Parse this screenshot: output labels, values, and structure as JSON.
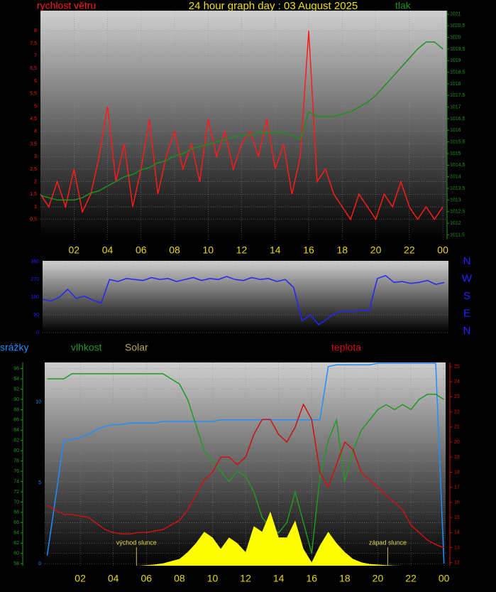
{
  "chart_data": [
    {
      "type": "line",
      "title": "24 hour graph day : 03 August 2025",
      "x": [
        0,
        0.5,
        1,
        1.5,
        2,
        2.5,
        3,
        3.5,
        4,
        4.5,
        5,
        5.5,
        6,
        6.5,
        7,
        7.5,
        8,
        8.5,
        9,
        9.5,
        10,
        10.5,
        11,
        11.5,
        12,
        12.5,
        13,
        13.5,
        14,
        14.5,
        15,
        15.5,
        16,
        16.5,
        17,
        17.5,
        18,
        18.5,
        19,
        19.5,
        20,
        20.5,
        21,
        21.5,
        22,
        22.5,
        23,
        23.5,
        24
      ],
      "xlim": [
        0,
        24.25
      ],
      "xticks": [
        {
          "value": 2,
          "label": "02"
        },
        {
          "value": 4,
          "label": "04"
        },
        {
          "value": 6,
          "label": "06"
        },
        {
          "value": 8,
          "label": "08"
        },
        10,
        12,
        14,
        16,
        18,
        20,
        22,
        {
          "value": 24,
          "label": "00"
        }
      ],
      "ylim": [
        -0.3,
        8.8
      ],
      "yticks": [
        {
          "value": 0.5,
          "label": "0,5"
        },
        1,
        {
          "value": 1.5,
          "label": "1,5"
        },
        2,
        {
          "value": 2.5,
          "label": "2,5"
        },
        3,
        {
          "value": 3.5,
          "label": "3,5"
        },
        4,
        {
          "value": 4.5,
          "label": "4,5"
        },
        5,
        {
          "value": 5.5,
          "label": "5,5"
        },
        6,
        {
          "value": 6.5,
          "label": "6,5"
        },
        7,
        {
          "value": 7.5,
          "label": "7,5"
        },
        8
      ],
      "y2lim": [
        1011.3,
        1021.15
      ],
      "y2ticks": [
        {
          "value": 1011.5,
          "label": "1011,5"
        },
        1012,
        {
          "value": 1012.5,
          "label": "1012,5"
        },
        1013,
        {
          "value": 1013.5,
          "label": "1013,5"
        },
        1014,
        {
          "value": 1014.5,
          "label": "1014,5"
        },
        1015,
        {
          "value": 1015.5,
          "label": "1015,5"
        },
        1016,
        {
          "value": 1016.5,
          "label": "1016,5"
        },
        1017,
        {
          "value": 1017.5,
          "label": "1017,5"
        },
        1018,
        {
          "value": 1018.5,
          "label": "1018,5"
        },
        1019,
        {
          "value": 1019.5,
          "label": "1019,5"
        },
        1020,
        {
          "value": 1020.5,
          "label": "1020,5"
        },
        1021
      ],
      "grid": true,
      "series": [
        {
          "name": "rychlost větru",
          "color": "#ff1a1a",
          "values": [
            1.5,
            1,
            2,
            1,
            2.5,
            0.8,
            1.5,
            3,
            5,
            2,
            3.5,
            1,
            2.5,
            4.5,
            1.5,
            3,
            4,
            2.5,
            3.5,
            2,
            4.5,
            3,
            4,
            2.5,
            3.5,
            4,
            3,
            4.5,
            2.5,
            3.5,
            1.5,
            3,
            8,
            2,
            2.5,
            1.5,
            1,
            0.5,
            1.5,
            1,
            0.5,
            1.5,
            1,
            2,
            1,
            0.5,
            1,
            0.5,
            1
          ]
        },
        {
          "name": "tlak",
          "color": "#1f8f1f",
          "axis": "y2",
          "values": [
            1013.2,
            1013.1,
            1013.0,
            1013.0,
            1013.0,
            1013.1,
            1013.3,
            1013.4,
            1013.6,
            1013.8,
            1014.0,
            1014.1,
            1014.3,
            1014.4,
            1014.6,
            1014.7,
            1014.9,
            1015.0,
            1015.2,
            1015.3,
            1015.4,
            1015.5,
            1015.6,
            1015.7,
            1015.8,
            1015.8,
            1015.9,
            1015.9,
            1015.9,
            1015.9,
            1015.8,
            1015.6,
            1016.8,
            1016.6,
            1016.6,
            1016.6,
            1016.7,
            1016.8,
            1017.0,
            1017.2,
            1017.5,
            1017.9,
            1018.3,
            1018.7,
            1019.1,
            1019.5,
            1019.8,
            1019.8,
            1019.5
          ]
        }
      ]
    },
    {
      "type": "line",
      "x": [
        0,
        0.5,
        1,
        1.5,
        2,
        2.5,
        3,
        3.5,
        4,
        4.5,
        5,
        5.5,
        6,
        6.5,
        7,
        7.5,
        8,
        8.5,
        9,
        9.5,
        10,
        10.5,
        11,
        11.5,
        12,
        12.5,
        13,
        13.5,
        14,
        14.5,
        15,
        15.5,
        16,
        16.5,
        17,
        17.5,
        18,
        18.5,
        19,
        19.5,
        20,
        20.5,
        21,
        21.5,
        22,
        22.5,
        23,
        23.5,
        24
      ],
      "xlim": [
        0,
        24.25
      ],
      "ylim": [
        0,
        365
      ],
      "yticks": [
        0,
        90,
        180,
        270,
        360
      ],
      "grid": true,
      "compass": [
        "N",
        "W",
        "S",
        "E",
        "N"
      ],
      "series": [
        {
          "color": "#2424ff",
          "values": [
            170,
            160,
            180,
            220,
            175,
            185,
            165,
            150,
            270,
            260,
            275,
            270,
            265,
            280,
            270,
            275,
            260,
            270,
            280,
            265,
            275,
            270,
            285,
            270,
            265,
            280,
            270,
            275,
            260,
            270,
            230,
            60,
            90,
            40,
            70,
            100,
            110,
            105,
            115,
            110,
            275,
            290,
            255,
            260,
            250,
            255,
            265,
            245,
            255
          ]
        }
      ]
    },
    {
      "type": "line",
      "x": [
        0,
        0.5,
        1,
        1.5,
        2,
        2.5,
        3,
        3.5,
        4,
        4.5,
        5,
        5.5,
        6,
        6.5,
        7,
        7.5,
        8,
        8.5,
        9,
        9.5,
        10,
        10.5,
        11,
        11.5,
        12,
        12.5,
        13,
        13.5,
        14,
        14.5,
        15,
        15.5,
        16,
        16.5,
        17,
        17.5,
        18,
        18.5,
        19,
        19.5,
        20,
        20.5,
        21,
        21.5,
        22,
        22.5,
        23,
        23.5,
        24
      ],
      "xlim": [
        -0.15,
        24.1
      ],
      "xticks": [
        {
          "value": 2,
          "label": "02"
        },
        {
          "value": 4,
          "label": "04"
        },
        {
          "value": 6,
          "label": "06"
        },
        {
          "value": 8,
          "label": "08"
        },
        10,
        12,
        14,
        16,
        18,
        20,
        22,
        {
          "value": 24,
          "label": "00"
        }
      ],
      "ylim": [
        -0.13,
        12.45
      ],
      "yticks": [
        0,
        5,
        10
      ],
      "y2lim": [
        11.8,
        25.28
      ],
      "y2ticks": [
        12,
        13,
        14,
        15,
        16,
        17,
        18,
        19,
        20,
        21,
        22,
        23,
        24,
        25
      ],
      "y3lim": [
        57.6,
        97.2
      ],
      "y3ticks": [
        58,
        60,
        62,
        64,
        66,
        68,
        70,
        72,
        74,
        76,
        78,
        80,
        82,
        84,
        86,
        88,
        90,
        92,
        94,
        96
      ],
      "y4lim": [
        0,
        1800
      ],
      "grid": true,
      "annotations": [
        {
          "text": "východ slunce",
          "x": 5.4
        },
        {
          "text": "západ slunce",
          "x": 20.6
        }
      ],
      "series": [
        {
          "name": "srážky",
          "color": "#1e8fff",
          "values": [
            0.5,
            4.0,
            7.6,
            7.7,
            7.8,
            8.0,
            8.3,
            8.5,
            8.6,
            8.6,
            8.7,
            8.7,
            8.7,
            8.7,
            8.8,
            8.8,
            8.8,
            8.8,
            8.8,
            8.8,
            8.8,
            8.9,
            8.9,
            8.9,
            8.9,
            8.9,
            8.9,
            8.9,
            8.9,
            8.9,
            8.9,
            8.9,
            8.9,
            8.9,
            12.2,
            12.3,
            12.3,
            12.3,
            12.3,
            12.3,
            12.4,
            12.4,
            12.4,
            12.4,
            12.4,
            12.4,
            12.4,
            12.4,
            0
          ]
        },
        {
          "name": "vlhkost",
          "color": "#229922",
          "axis": "y3",
          "values": [
            94,
            94,
            94,
            95,
            95,
            95,
            95,
            95,
            95,
            95,
            95,
            95,
            95,
            95,
            95,
            94,
            93,
            90,
            85,
            80,
            78,
            76,
            74,
            76,
            75,
            72,
            67,
            65,
            64,
            66,
            72,
            66,
            60,
            75,
            82,
            86,
            74,
            80,
            84,
            86,
            88,
            89,
            88,
            89,
            88,
            90,
            91,
            91,
            90
          ]
        },
        {
          "name": "Solar",
          "color": "#ffff00",
          "axis": "y4",
          "area": true,
          "values": [
            0,
            0,
            0,
            0,
            0,
            0,
            0,
            0,
            0,
            0,
            0,
            0,
            5,
            10,
            20,
            40,
            60,
            120,
            200,
            300,
            250,
            150,
            250,
            200,
            120,
            350,
            300,
            480,
            250,
            250,
            400,
            150,
            30,
            180,
            300,
            200,
            120,
            60,
            30,
            15,
            10,
            5,
            2,
            0,
            0,
            0,
            0,
            0,
            0
          ]
        },
        {
          "name": "teplota",
          "color": "#d01010",
          "axis": "y2",
          "values": [
            15.8,
            15.5,
            15.2,
            15.2,
            15.1,
            15.0,
            14.6,
            14.2,
            14.0,
            13.9,
            13.9,
            14.0,
            14.0,
            14.1,
            14.2,
            14.5,
            14.8,
            15.5,
            16.5,
            17.5,
            18.0,
            19.0,
            19.0,
            18.5,
            19.0,
            20.5,
            21.5,
            21.5,
            20.5,
            20.0,
            21.0,
            22.5,
            21.5,
            18.0,
            17.0,
            18.5,
            20.0,
            19.5,
            18.0,
            17.5,
            17.0,
            16.5,
            16.0,
            15.5,
            14.5,
            14.0,
            13.5,
            13.2,
            13.0
          ]
        }
      ]
    }
  ]
}
